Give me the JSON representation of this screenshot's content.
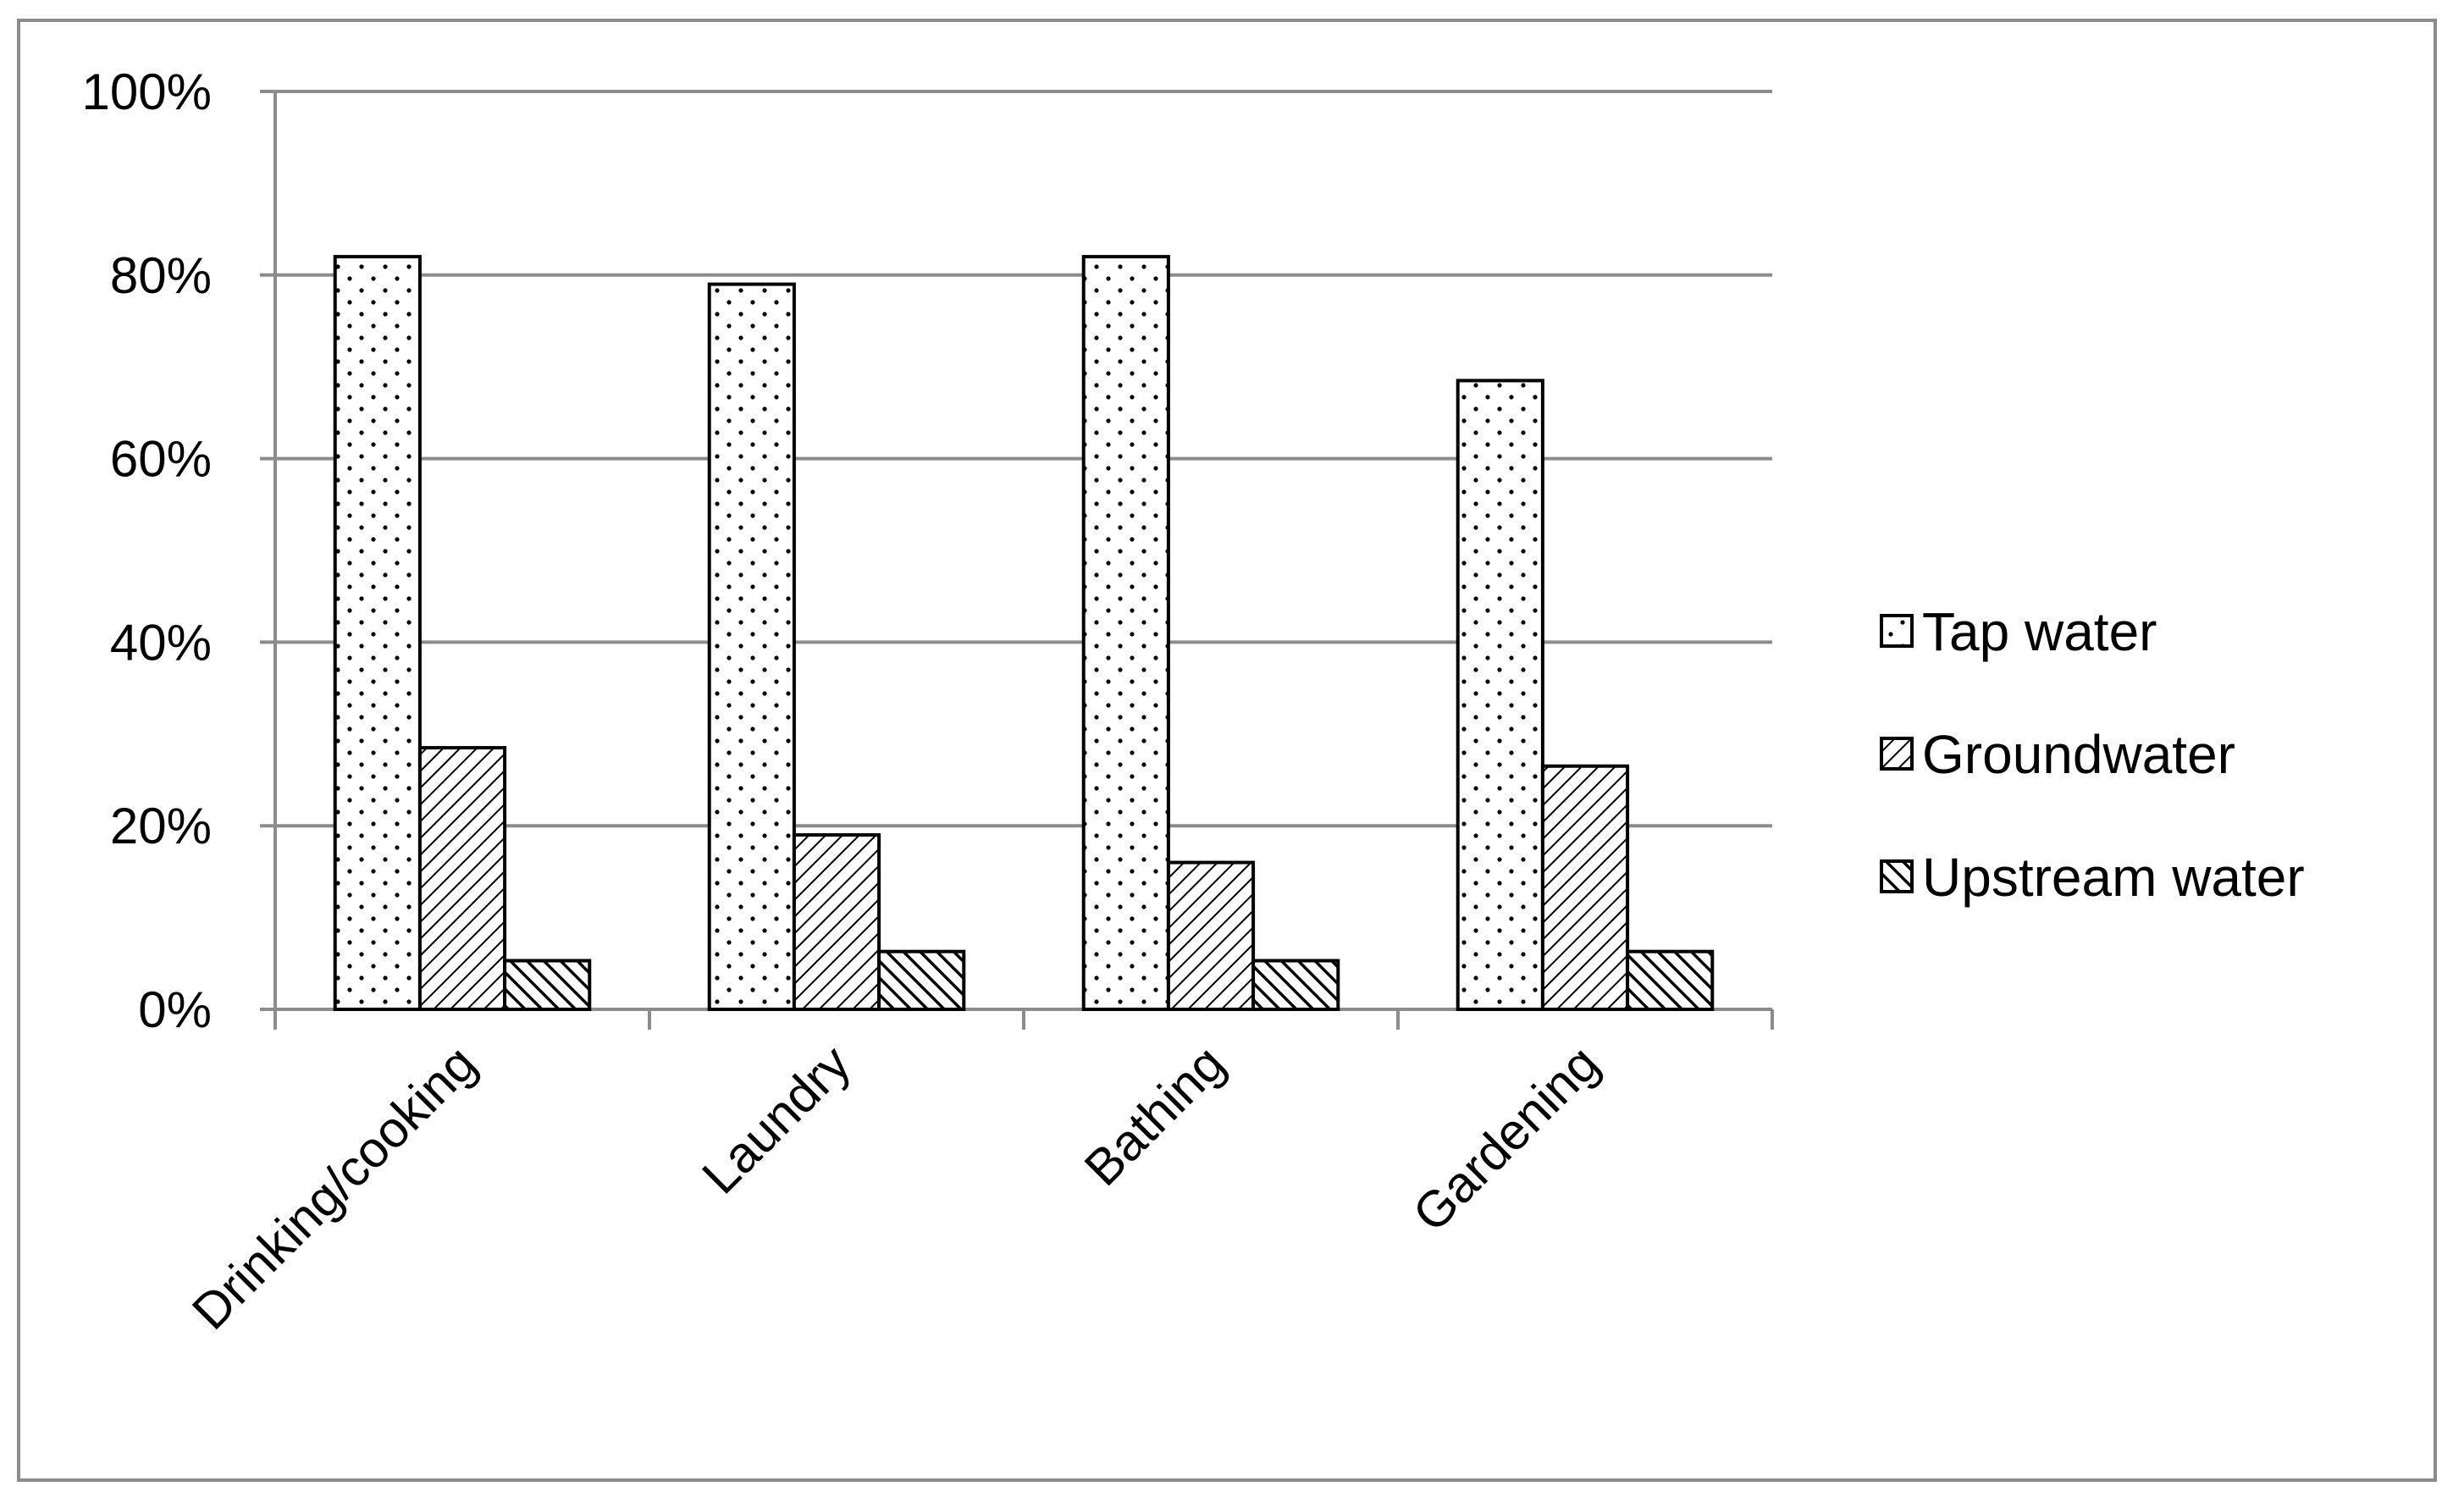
{
  "chart_data": {
    "type": "bar",
    "title": "",
    "xlabel": "",
    "ylabel": "",
    "categories": [
      "Drinking/cooking",
      "Laundry",
      "Bathing",
      "Gardening"
    ],
    "series": [
      {
        "name": "Tap water",
        "values": [
          82,
          79,
          82,
          68.5
        ],
        "pattern": "dots"
      },
      {
        "name": "Groundwater",
        "values": [
          28.5,
          19,
          16,
          26.5
        ],
        "pattern": "hatch-down"
      },
      {
        "name": "Upstream water",
        "values": [
          5.3,
          6.3,
          5.3,
          6.3
        ],
        "pattern": "hatch-up"
      }
    ],
    "ylim": [
      0,
      100
    ],
    "yticks": [
      0,
      20,
      40,
      60,
      80,
      100
    ],
    "ytick_labels": [
      "0%",
      "20%",
      "40%",
      "60%",
      "80%",
      "100%"
    ],
    "grid": true,
    "legend_position": "right",
    "colors": {
      "gridline": "#8c8c8c",
      "bar_fill": "#ffffff",
      "bar_stroke": "#000000",
      "frame": "#8c8c8c"
    }
  }
}
